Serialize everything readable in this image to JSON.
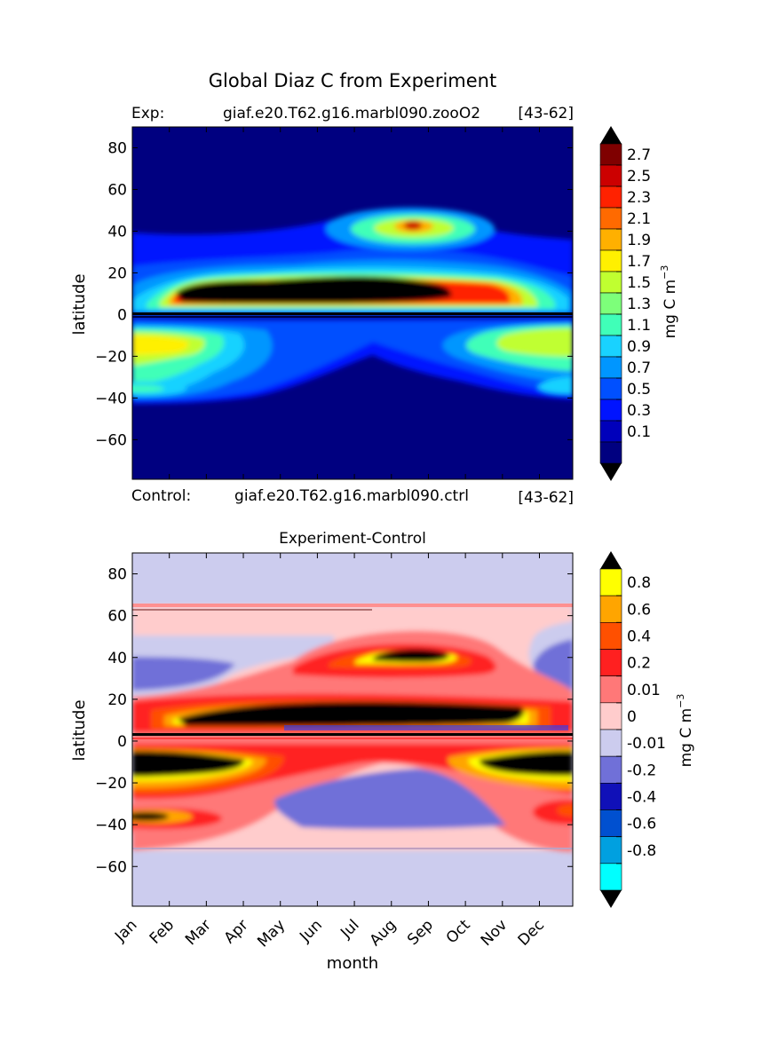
{
  "title": "Global Diaz C from Experiment",
  "top_panel": {
    "left_label": "Exp:",
    "case_name": "giaf.e20.T62.g16.marbl090.zooO2",
    "years": "[43-62]",
    "ylabel": "latitude",
    "colorbar_label": "mg C m",
    "colorbar_exponent": "−3"
  },
  "bottom_panel": {
    "left_label": "Control:",
    "case_name": "giaf.e20.T62.g16.marbl090.ctrl",
    "years": "[43-62]",
    "title": "Experiment-Control",
    "ylabel": "latitude",
    "xlabel": "month",
    "colorbar_label": "mg C m",
    "colorbar_exponent": "−3"
  },
  "chart_data": [
    {
      "type": "heatmap",
      "subtype": "filled-contour",
      "title": "Global Diaz C from Experiment",
      "x_categories": [
        "Jan",
        "Feb",
        "Mar",
        "Apr",
        "May",
        "Jun",
        "Jul",
        "Aug",
        "Sep",
        "Oct",
        "Nov",
        "Dec"
      ],
      "y_ticks": [
        80,
        60,
        40,
        20,
        0,
        -20,
        -40,
        -60
      ],
      "ylim": [
        -79,
        90
      ],
      "ylabel": "latitude",
      "colorbar_ticks": [
        "2.7",
        "2.5",
        "2.3",
        "2.1",
        "1.9",
        "1.7",
        "1.5",
        "1.3",
        "1.1",
        "0.9",
        "0.7",
        "0.5",
        "0.3",
        "0.1"
      ],
      "colorbar_colors": [
        "#7f0000",
        "#cc0000",
        "#ff2200",
        "#ff6a00",
        "#ffb000",
        "#fff000",
        "#c0ff30",
        "#7dff7a",
        "#40ffb8",
        "#19d2ff",
        "#0096ff",
        "#0050ff",
        "#0014ff",
        "#0000bb",
        "#000080"
      ],
      "features": [
        {
          "name": "northern tropical maximum",
          "lat": 13,
          "month_span": [
            "Mar",
            "Oct"
          ],
          "level": ">2.8"
        },
        {
          "name": "mid-latitude Aug peak",
          "lat": 43,
          "month": "Aug",
          "level": "2.7"
        },
        {
          "name": "southern subtropical band",
          "lat": -10,
          "level": "1.7"
        }
      ]
    },
    {
      "type": "heatmap",
      "subtype": "filled-contour",
      "title": "Experiment-Control",
      "x_categories": [
        "Jan",
        "Feb",
        "Mar",
        "Apr",
        "May",
        "Jun",
        "Jul",
        "Aug",
        "Sep",
        "Oct",
        "Nov",
        "Dec"
      ],
      "y_ticks": [
        80,
        60,
        40,
        20,
        0,
        -20,
        -40,
        -60
      ],
      "ylim": [
        -79,
        90
      ],
      "xlabel": "month",
      "ylabel": "latitude",
      "colorbar_ticks": [
        "0.8",
        "0.6",
        "0.4",
        "0.2",
        "0.01",
        "0",
        "-0.01",
        "-0.2",
        "-0.4",
        "-0.6",
        "-0.8"
      ],
      "colorbar_colors": [
        "#ffff00",
        "#ffa500",
        "#ff5000",
        "#ff2020",
        "#ff7878",
        "#ffcccc",
        "#ccccee",
        "#7070d8",
        "#1010b8",
        "#0050d0",
        "#00a0e0",
        "#00ffff"
      ],
      "features": [
        {
          "name": "positive anomaly north tropics",
          "lat": 13,
          "level": ">0.8"
        },
        {
          "name": "positive anomaly Aug 43N",
          "lat": 43,
          "level": ">0.8"
        },
        {
          "name": "positive anomaly south tropics (Jan-Mar, Sep-Dec)",
          "lat": -10,
          "level": ">0.8"
        },
        {
          "name": "negative anomaly southern mid-latitudes",
          "lat": -35,
          "level": "-0.2"
        }
      ]
    }
  ]
}
